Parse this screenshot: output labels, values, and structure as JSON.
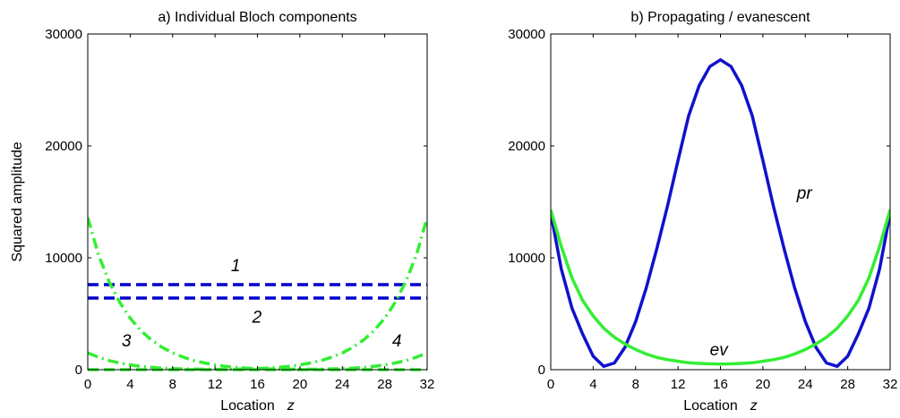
{
  "chart_data": [
    {
      "type": "line",
      "title": "a) Individual Bloch components",
      "xlabel": "Location",
      "xlabel_var": "z",
      "ylabel": "Squared amplitude",
      "xlim": [
        0,
        32
      ],
      "ylim": [
        0,
        30000
      ],
      "xticks": [
        0,
        4,
        8,
        12,
        16,
        20,
        24,
        28,
        32
      ],
      "yticks": [
        0,
        10000,
        20000,
        30000
      ],
      "annotations": [
        {
          "text": "1",
          "x": 13.5,
          "y": 8800
        },
        {
          "text": "2",
          "x": 15.5,
          "y": 4200
        },
        {
          "text": "3",
          "x": 3.2,
          "y": 2100
        },
        {
          "text": "4",
          "x": 28.7,
          "y": 2100
        }
      ],
      "series": [
        {
          "key": "1",
          "color": "#0000cc",
          "style": "dashed",
          "x": [
            0,
            32
          ],
          "y": [
            7600,
            7600
          ]
        },
        {
          "key": "2",
          "color": "#0000cc",
          "style": "dashed",
          "x": [
            0,
            32
          ],
          "y": [
            6400,
            6400
          ]
        },
        {
          "key": "3",
          "color": "#33ee33",
          "style": "dashdot",
          "x": [
            0,
            1,
            2,
            3,
            4,
            5,
            6,
            7,
            8,
            9,
            10,
            11,
            12,
            13,
            14,
            15,
            16,
            17,
            18,
            19,
            20,
            21,
            22,
            23,
            24,
            25,
            26,
            27,
            28,
            29,
            30,
            31,
            32
          ],
          "y": [
            13600,
            10300,
            7900,
            6050,
            4600,
            3500,
            2650,
            2000,
            1500,
            1120,
            820,
            600,
            430,
            300,
            210,
            140,
            100,
            70,
            50,
            40,
            35,
            40,
            50,
            70,
            100,
            140,
            210,
            300,
            430,
            600,
            820,
            1120,
            1500
          ]
        },
        {
          "key": "4",
          "color": "#33ee33",
          "style": "dashdot",
          "x": [
            0,
            1,
            2,
            3,
            4,
            5,
            6,
            7,
            8,
            9,
            10,
            11,
            12,
            13,
            14,
            15,
            16,
            17,
            18,
            19,
            20,
            21,
            22,
            23,
            24,
            25,
            26,
            27,
            28,
            29,
            30,
            31,
            32
          ],
          "y": [
            1500,
            1120,
            820,
            600,
            430,
            300,
            210,
            140,
            100,
            70,
            50,
            40,
            35,
            40,
            50,
            70,
            100,
            140,
            210,
            300,
            430,
            600,
            820,
            1120,
            1500,
            2000,
            2650,
            3500,
            4600,
            6050,
            7900,
            10300,
            13600
          ]
        },
        {
          "key": "flat",
          "color": "#33ee33",
          "style": "dashed",
          "x": [
            0,
            32
          ],
          "y": [
            0,
            0
          ]
        }
      ]
    },
    {
      "type": "line",
      "title": "b) Propagating / evanescent",
      "xlabel": "Location",
      "xlabel_var": "z",
      "ylabel": "",
      "xlim": [
        0,
        32
      ],
      "ylim": [
        0,
        30000
      ],
      "xticks": [
        0,
        4,
        8,
        12,
        16,
        20,
        24,
        28,
        32
      ],
      "yticks": [
        0,
        10000,
        20000,
        30000
      ],
      "annotations": [
        {
          "text": "pr",
          "x": 23.2,
          "y": 15300
        },
        {
          "text": "ev",
          "x": 15.0,
          "y": 1300
        }
      ],
      "series": [
        {
          "key": "pr",
          "color": "#1111cc",
          "style": "solid",
          "x": [
            0,
            1,
            2,
            3,
            4,
            5,
            6,
            7,
            8,
            9,
            10,
            11,
            12,
            13,
            14,
            15,
            16,
            17,
            18,
            19,
            20,
            21,
            22,
            23,
            24,
            25,
            26,
            27,
            28,
            29,
            30,
            31,
            32
          ],
          "y": [
            14000,
            9000,
            5500,
            3200,
            1200,
            300,
            600,
            2000,
            4300,
            7300,
            10800,
            14600,
            18700,
            22700,
            25400,
            27100,
            27700,
            27100,
            25400,
            22700,
            18700,
            14600,
            10800,
            7300,
            4300,
            2000,
            600,
            300,
            1200,
            3200,
            5500,
            9000,
            14000
          ]
        },
        {
          "key": "ev",
          "color": "#33ee33",
          "style": "solid",
          "x": [
            0,
            1,
            2,
            3,
            4,
            5,
            6,
            7,
            8,
            9,
            10,
            11,
            12,
            13,
            14,
            15,
            16,
            17,
            18,
            19,
            20,
            21,
            22,
            23,
            24,
            25,
            26,
            27,
            28,
            29,
            30,
            31,
            32
          ],
          "y": [
            14300,
            11000,
            8200,
            6200,
            4800,
            3700,
            2900,
            2300,
            1800,
            1400,
            1100,
            900,
            750,
            620,
            560,
            520,
            500,
            520,
            560,
            620,
            750,
            900,
            1100,
            1400,
            1800,
            2300,
            2900,
            3700,
            4800,
            6200,
            8200,
            11000,
            14300
          ]
        }
      ]
    }
  ]
}
